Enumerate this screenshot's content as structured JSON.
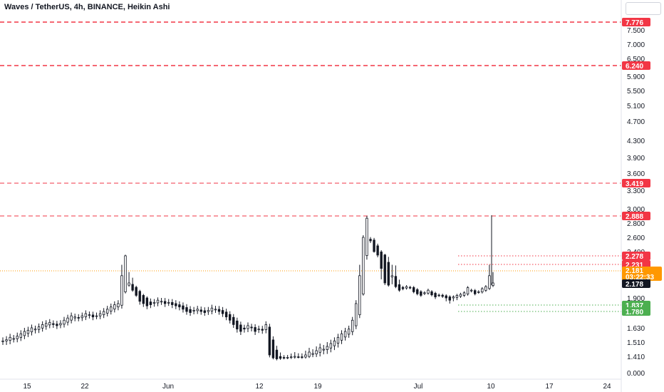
{
  "header": {
    "title": "Waves / TetherUS, 4h, BINANCE, Heikin Ashi"
  },
  "colors": {
    "resistance": "#f23645",
    "support": "#4caf50",
    "price_badge": "#ff9800",
    "last_badge": "#131722",
    "candles": "#131722",
    "axis_text": "#131722",
    "separator": "#e0e3eb"
  },
  "chart_data": {
    "type": "candlestick",
    "title": "Waves / TetherUS, 4h, BINANCE, Heikin Ashi",
    "xlabel": "",
    "ylabel": "",
    "x_ticks": [
      "15",
      "22",
      "Jun",
      "12",
      "19",
      "Jul",
      "10",
      "17",
      "24"
    ],
    "y_ticks": [
      "7.500",
      "7.000",
      "6.500",
      "5.900",
      "5.500",
      "5.100",
      "4.700",
      "4.300",
      "3.900",
      "3.600",
      "3.300",
      "3.000",
      "2.800",
      "2.600",
      "2.400",
      "1.900",
      "1.630",
      "1.510",
      "1.410",
      "0.000"
    ],
    "ylim": [
      0,
      8.0
    ],
    "grid": false,
    "price_lines": [
      {
        "value": "7.776",
        "kind": "resistance"
      },
      {
        "value": "6.240",
        "kind": "resistance"
      },
      {
        "value": "3.419",
        "kind": "resistance"
      },
      {
        "value": "2.888",
        "kind": "resistance"
      },
      {
        "value": "2.278",
        "kind": "resistance"
      },
      {
        "value": "2.231",
        "kind": "resistance"
      },
      {
        "value": "1.837",
        "kind": "support"
      },
      {
        "value": "1.780",
        "kind": "support"
      }
    ],
    "current_price": {
      "value": "2.181",
      "countdown": "03:22:33"
    },
    "last_close": "2.178",
    "approx_close_series": [
      1.52,
      1.53,
      1.55,
      1.54,
      1.56,
      1.58,
      1.6,
      1.61,
      1.63,
      1.62,
      1.64,
      1.66,
      1.67,
      1.68,
      1.66,
      1.65,
      1.67,
      1.7,
      1.72,
      1.74,
      1.73,
      1.72,
      1.74,
      1.76,
      1.75,
      1.73,
      1.74,
      1.76,
      1.78,
      1.8,
      1.82,
      1.84,
      1.85,
      2.2,
      2.28,
      2.18,
      2.05,
      1.95,
      1.87,
      1.85,
      1.83,
      1.84,
      1.86,
      1.88,
      1.87,
      1.85,
      1.86,
      1.84,
      1.83,
      1.82,
      1.8,
      1.78,
      1.77,
      1.79,
      1.8,
      1.78,
      1.77,
      1.79,
      1.81,
      1.8,
      1.78,
      1.76,
      1.73,
      1.7,
      1.66,
      1.62,
      1.6,
      1.62,
      1.65,
      1.63,
      1.6,
      1.62,
      1.61,
      1.66,
      1.42,
      1.38,
      1.36,
      1.37,
      1.38,
      1.39,
      1.4,
      1.41,
      1.4,
      1.39,
      1.42,
      1.44,
      1.43,
      1.45,
      1.47,
      1.46,
      1.48,
      1.5,
      1.52,
      1.55,
      1.58,
      1.6,
      1.62,
      1.7,
      1.85,
      2.2,
      2.6,
      2.86,
      2.55,
      2.4,
      2.3,
      2.22,
      2.18,
      2.15,
      2.2,
      2.12,
      2.05,
      2.08,
      2.12,
      2.1,
      2.02,
      1.98,
      1.95,
      2.0,
      2.05,
      1.96,
      1.92,
      1.95,
      1.93,
      1.9,
      1.88,
      1.92,
      1.95,
      1.97,
      2.0,
      2.1,
      2.05,
      1.98,
      2.02,
      2.08,
      2.12,
      2.2,
      2.18
    ]
  }
}
